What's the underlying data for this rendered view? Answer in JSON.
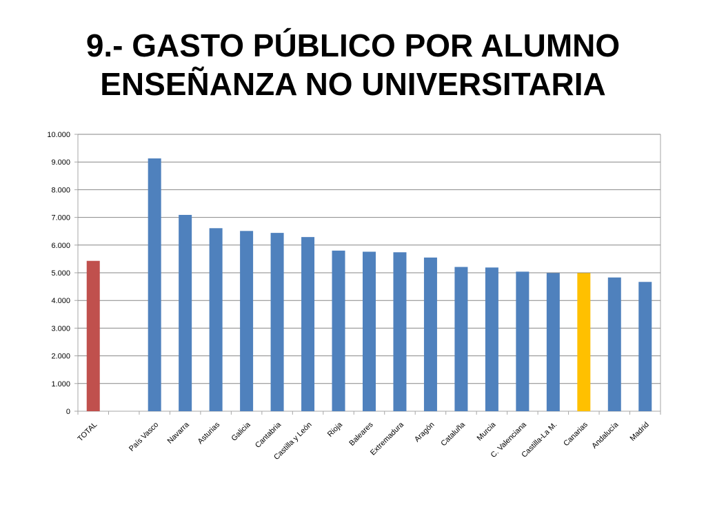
{
  "slide": {
    "title_line1": "9.- GASTO PÚBLICO POR ALUMNO",
    "title_line2": "ENSEÑANZA NO UNIVERSITARIA"
  },
  "chart_data": {
    "type": "bar",
    "title": "",
    "xlabel": "",
    "ylabel": "",
    "ylim": [
      0,
      10000
    ],
    "yticks": [
      {
        "value": 0,
        "label": "0"
      },
      {
        "value": 1000,
        "label": "1.000"
      },
      {
        "value": 2000,
        "label": "2.000"
      },
      {
        "value": 3000,
        "label": "3.000"
      },
      {
        "value": 4000,
        "label": "4.000"
      },
      {
        "value": 5000,
        "label": "5.000"
      },
      {
        "value": 6000,
        "label": "6.000"
      },
      {
        "value": 7000,
        "label": "7.000"
      },
      {
        "value": 8000,
        "label": "8.000"
      },
      {
        "value": 9000,
        "label": "9.000"
      },
      {
        "value": 10000,
        "label": "10.000"
      }
    ],
    "grid": true,
    "legend": "none",
    "categories": [
      "TOTAL",
      "",
      "País Vasco",
      "Navarra",
      "Asturias",
      "Galicia",
      "Cantabria",
      "Castilla y León",
      "Rioja",
      "Baleares",
      "Extremadura",
      "Aragón",
      "Cataluña",
      "Murcia",
      "C. Valenciana",
      "Castilla-La M.",
      "Canarias",
      "Andalucía",
      "Madrid"
    ],
    "values": [
      5430,
      null,
      9130,
      7090,
      6610,
      6510,
      6440,
      6290,
      5800,
      5760,
      5740,
      5550,
      5210,
      5190,
      5040,
      4990,
      4990,
      4830,
      4670
    ],
    "colors": [
      "#C0504D",
      null,
      "#4F81BD",
      "#4F81BD",
      "#4F81BD",
      "#4F81BD",
      "#4F81BD",
      "#4F81BD",
      "#4F81BD",
      "#4F81BD",
      "#4F81BD",
      "#4F81BD",
      "#4F81BD",
      "#4F81BD",
      "#4F81BD",
      "#4F81BD",
      "#FFC000",
      "#4F81BD",
      "#4F81BD"
    ],
    "gridline_color": "#868686",
    "axis_color": "#A6A6A6"
  }
}
